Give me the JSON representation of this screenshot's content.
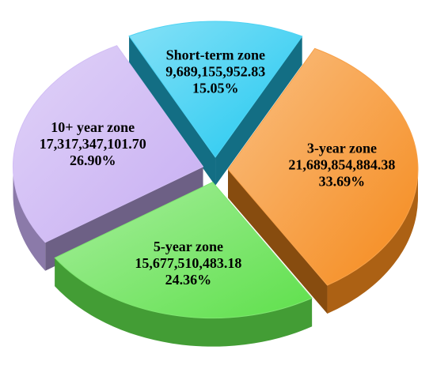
{
  "chart_data": {
    "type": "pie3d",
    "categories": [
      "Short-term zone",
      "3-year zone",
      "5-year zone",
      "10+ year zone"
    ],
    "values": [
      9689155952.83,
      21689854884.38,
      15677510483.18,
      17317347101.7
    ],
    "value_labels": [
      "9,689,155,952.83",
      "21,689,854,884.38",
      "15,677,510,483.18",
      "17,317,347,101.70"
    ],
    "percents": [
      15.05,
      33.69,
      24.36,
      26.9
    ],
    "percent_labels": [
      "15.05%",
      "33.69%",
      "24.36%",
      "26.90%"
    ],
    "colors": [
      "#22c8f0",
      "#f58a1c",
      "#5fe04c",
      "#c7aef2"
    ]
  }
}
